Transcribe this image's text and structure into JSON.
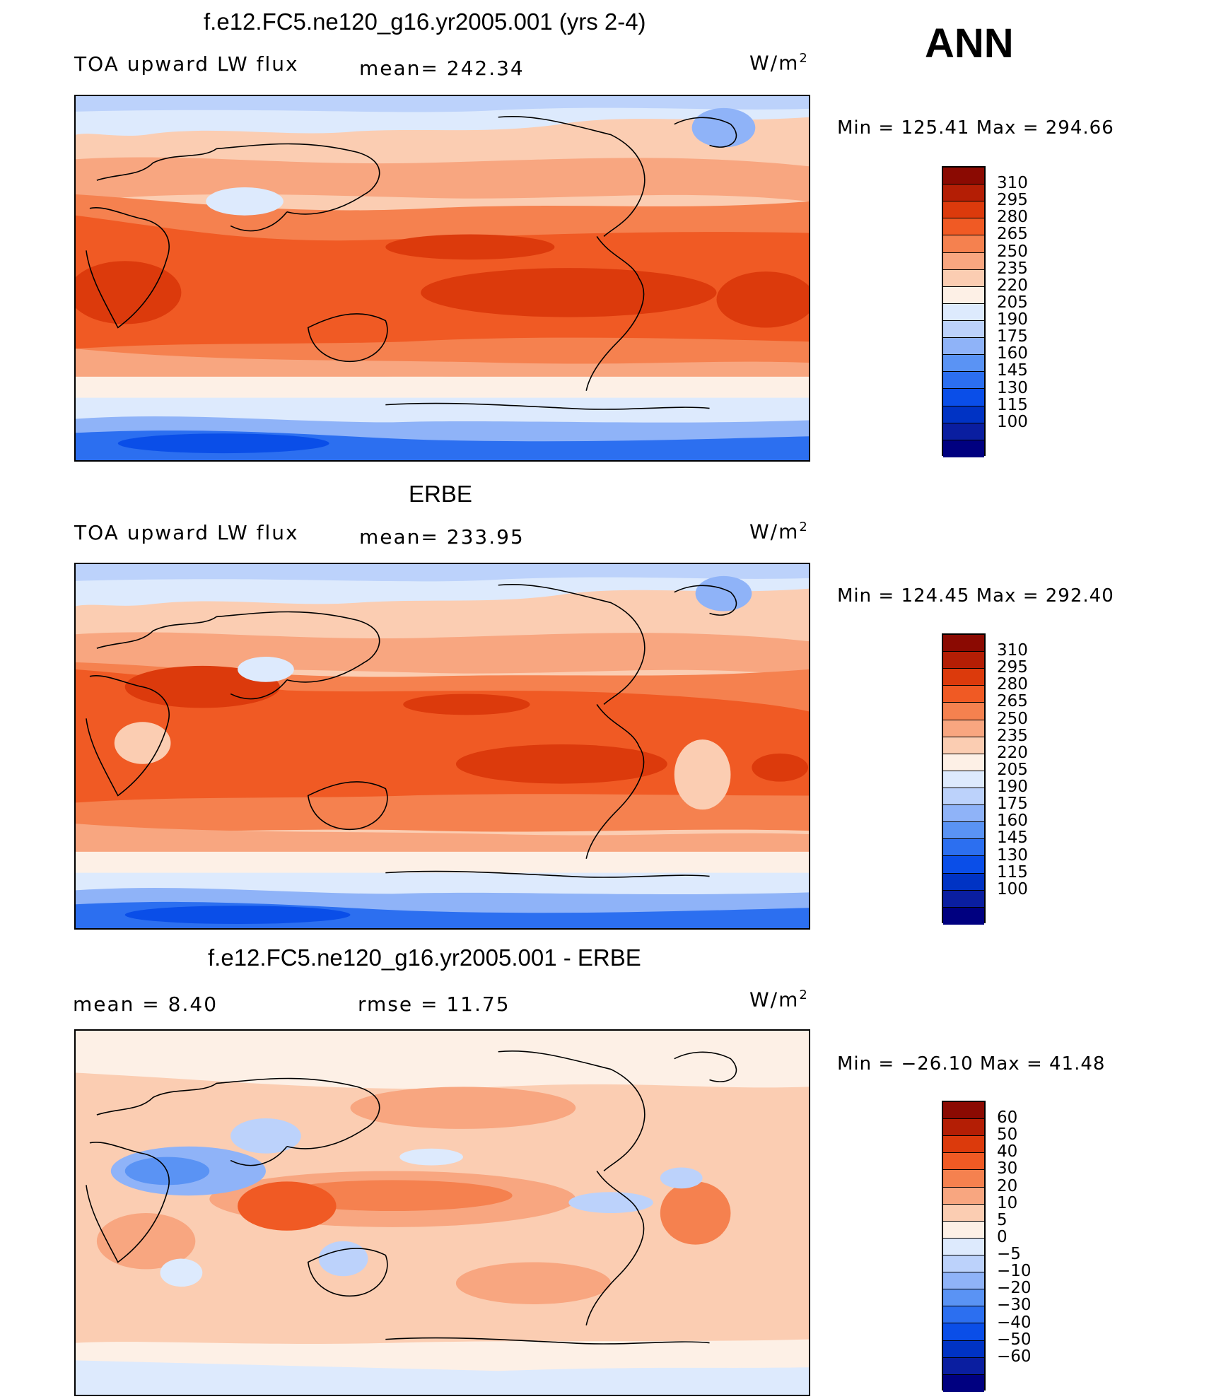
{
  "season": "ANN",
  "colors": {
    "abs_scale": [
      "#000080",
      "#0a1ea0",
      "#0033c4",
      "#0a4ee8",
      "#2c6ff0",
      "#5a93f4",
      "#8fb3f8",
      "#bcd2fb",
      "#ddeafd",
      "#fdf0e6",
      "#fbcdb2",
      "#f8a680",
      "#f5814f",
      "#f05a24",
      "#dc3a0c",
      "#b41e05",
      "#8b0a02"
    ],
    "diff_scale": [
      "#000080",
      "#0a1ea0",
      "#0033c4",
      "#0a4ee8",
      "#2c6ff0",
      "#5a93f4",
      "#8fb3f8",
      "#bcd2fb",
      "#ddeafd",
      "#fdf0e6",
      "#fbcdb2",
      "#f8a680",
      "#f5814f",
      "#f05a24",
      "#dc3a0c",
      "#b41e05",
      "#8b0a02"
    ]
  },
  "panels": [
    {
      "title": "f.e12.FC5.ne120_g16.yr2005.001 (yrs 2-4)",
      "left_label": "TOA upward LW flux",
      "mean_label": "mean=  242.34",
      "units": "W/m",
      "units_sup": "2",
      "minmax": "Min  =  125.41  Max  =  294.66",
      "ticks": [
        "310",
        "295",
        "280",
        "265",
        "250",
        "235",
        "220",
        "205",
        "190",
        "175",
        "160",
        "145",
        "130",
        "115",
        "100"
      ]
    },
    {
      "title": "ERBE",
      "left_label": "TOA upward LW flux",
      "mean_label": "mean=  233.95",
      "units": "W/m",
      "units_sup": "2",
      "minmax": "Min  =  124.45  Max  =  292.40",
      "ticks": [
        "310",
        "295",
        "280",
        "265",
        "250",
        "235",
        "220",
        "205",
        "190",
        "175",
        "160",
        "145",
        "130",
        "115",
        "100"
      ]
    },
    {
      "title": "f.e12.FC5.ne120_g16.yr2005.001 - ERBE",
      "left_label": "mean  =      8.40",
      "mean_label": "rmse  =      11.75",
      "units": "W/m",
      "units_sup": "2",
      "minmax": "Min  =  −26.10  Max  =    41.48",
      "ticks": [
        "60",
        "50",
        "40",
        "30",
        "20",
        "10",
        "5",
        "0",
        "−5",
        "−10",
        "−20",
        "−30",
        "−40",
        "−50",
        "−60"
      ]
    }
  ]
}
